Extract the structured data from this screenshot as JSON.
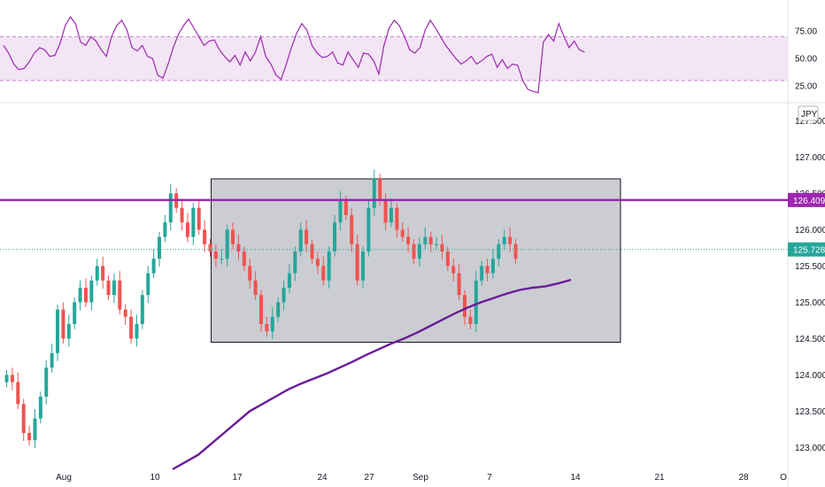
{
  "chart_data": [
    {
      "type": "line",
      "role": "rsi-indicator",
      "ylim": [
        13,
        97
      ],
      "y_ticks": [
        "75.00",
        "50.00",
        "25.00"
      ],
      "band": {
        "upper": 70,
        "lower": 30
      },
      "color": "#9c27b0",
      "band_fill": "#f3e5f5",
      "values": [
        62,
        55,
        45,
        40,
        41,
        47,
        55,
        60,
        58,
        52,
        53,
        64,
        80,
        88,
        82,
        65,
        62,
        70,
        66,
        58,
        52,
        70,
        80,
        85,
        76,
        60,
        57,
        62,
        52,
        50,
        35,
        32,
        45,
        60,
        72,
        80,
        86,
        78,
        70,
        62,
        66,
        67,
        58,
        52,
        47,
        53,
        44,
        56,
        48,
        56,
        70,
        52,
        45,
        35,
        31,
        45,
        60,
        73,
        82,
        76,
        62,
        55,
        51,
        52,
        56,
        46,
        44,
        56,
        49,
        42,
        55,
        54,
        48,
        36,
        62,
        78,
        85,
        80,
        70,
        58,
        55,
        60,
        76,
        85,
        78,
        70,
        62,
        56,
        50,
        45,
        48,
        52,
        45,
        48,
        52,
        54,
        42,
        49,
        41,
        45,
        44,
        30,
        22,
        20,
        19,
        65,
        72,
        66,
        82,
        70,
        60,
        66,
        58,
        56
      ],
      "x_start_index": 0
    },
    {
      "type": "candlestick",
      "role": "price",
      "currency": "JPY",
      "ylim": [
        122.7,
        127.7
      ],
      "y_ticks": [
        "127.500",
        "127.000",
        "126.500",
        "126.000",
        "125.500",
        "125.000",
        "124.500",
        "124.000",
        "123.500",
        "123.000"
      ],
      "x_ticks": [
        {
          "label": "Aug",
          "index": 8
        },
        {
          "label": "10",
          "index": 21
        },
        {
          "label": "17",
          "index": 33
        },
        {
          "label": "24",
          "index": 45
        },
        {
          "label": "27",
          "index": 51
        },
        {
          "label": "Sep",
          "index": 58
        },
        {
          "label": "7",
          "index": 69
        },
        {
          "label": "14",
          "index": 81
        },
        {
          "label": "21",
          "index": 93
        },
        {
          "label": "28",
          "index": 105
        },
        {
          "label": "O",
          "index": 111
        }
      ],
      "up_color": "#26a69a",
      "down_color": "#ef5350",
      "closes": [
        124.0,
        123.9,
        123.6,
        123.2,
        123.1,
        123.4,
        123.7,
        124.1,
        124.3,
        124.9,
        124.5,
        124.7,
        125.0,
        125.2,
        125.0,
        125.3,
        125.5,
        125.3,
        125.1,
        125.3,
        124.9,
        124.8,
        124.5,
        124.7,
        125.1,
        125.4,
        125.6,
        125.9,
        126.1,
        126.5,
        126.3,
        126.1,
        125.9,
        126.3,
        126.0,
        125.8,
        125.7,
        125.6,
        125.6,
        126.0,
        125.8,
        125.7,
        125.5,
        125.3,
        125.1,
        124.7,
        124.6,
        124.8,
        125.0,
        125.2,
        125.4,
        125.7,
        126.0,
        125.8,
        125.6,
        125.5,
        125.3,
        125.7,
        126.1,
        126.4,
        126.2,
        125.8,
        125.3,
        125.7,
        126.3,
        126.7,
        126.4,
        126.1,
        126.3,
        126.0,
        125.9,
        125.8,
        125.6,
        125.8,
        125.9,
        125.8,
        125.8,
        125.7,
        125.5,
        125.4,
        125.1,
        124.8,
        124.7,
        125.3,
        125.5,
        125.4,
        125.6,
        125.8,
        125.9,
        125.8,
        125.6
      ],
      "overlay_start_index": 23,
      "ma_values": [
        122.7,
        122.8,
        122.9,
        123.05,
        123.2,
        123.35,
        123.5,
        123.6,
        123.7,
        123.8,
        123.88,
        123.95,
        124.02,
        124.1,
        124.18,
        124.27,
        124.35,
        124.43,
        124.5,
        124.58,
        124.67,
        124.76,
        124.85,
        124.93,
        125.0,
        125.06,
        125.12,
        125.17,
        125.2,
        125.22,
        125.26,
        125.31
      ]
    }
  ],
  "annotations": {
    "resistance_level": 126.409,
    "resistance_label": "126.409",
    "last_price": 125.728,
    "last_price_label": "125.728",
    "range_box": {
      "y_top": 126.7,
      "y_bottom": 124.45,
      "x_from_index": 29,
      "x_to_index": 96
    }
  },
  "colors": {
    "resistance": "#9c27b0",
    "ma": "#6a1b9a",
    "last_price": "#26a69a",
    "box_fill": "#c2c4ca",
    "box_stroke": "#131722",
    "grid": "#e0e3eb"
  }
}
